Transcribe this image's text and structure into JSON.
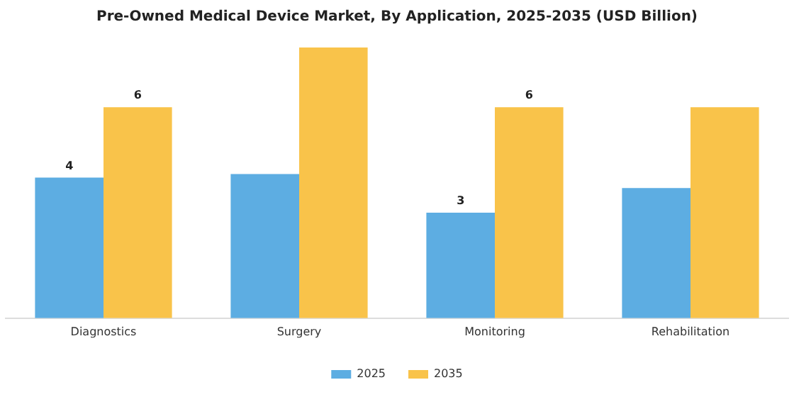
{
  "chart_data": {
    "type": "bar",
    "title": "Pre-Owned Medical Device Market, By Application, 2025-2035 (USD Billion)",
    "categories": [
      "Diagnostics",
      "Surgery",
      "Monitoring",
      "Rehabilitation"
    ],
    "series": [
      {
        "name": "2025",
        "color": "#5dade2",
        "values": [
          4,
          4.1,
          3,
          3.7
        ],
        "value_labels": [
          "4",
          null,
          "3",
          null
        ]
      },
      {
        "name": "2035",
        "color": "#f9c34a",
        "values": [
          6,
          7.7,
          6,
          6.0
        ],
        "value_labels": [
          "6",
          null,
          "6",
          null
        ]
      }
    ],
    "grid": false,
    "legend": "bottom"
  }
}
